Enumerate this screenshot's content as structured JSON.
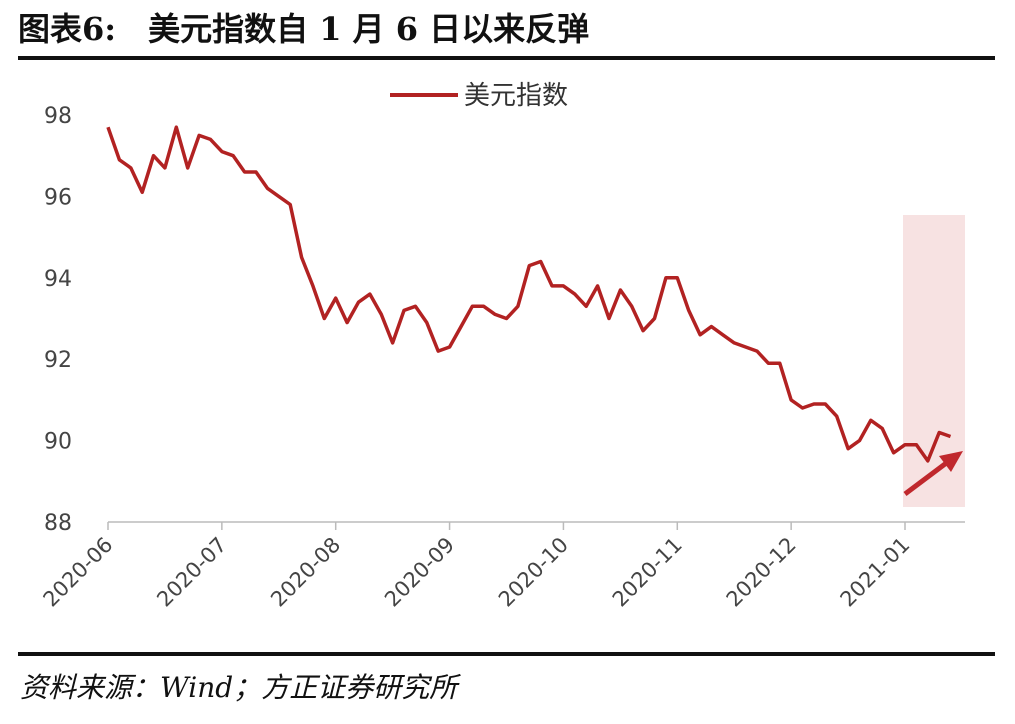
{
  "chart_data": {
    "type": "line",
    "title": "图表6:　美元指数自 1 月 6 日以来反弹",
    "source": "资料来源：Wind；方正证券研究所",
    "categories": [
      "2020-06",
      null,
      null,
      null,
      null,
      null,
      null,
      null,
      null,
      null,
      "2020-07",
      null,
      null,
      null,
      null,
      null,
      null,
      null,
      null,
      null,
      "2020-08",
      null,
      null,
      null,
      null,
      null,
      null,
      null,
      null,
      null,
      "2020-09",
      null,
      null,
      null,
      null,
      null,
      null,
      null,
      null,
      null,
      "2020-10",
      null,
      null,
      null,
      null,
      null,
      null,
      null,
      null,
      null,
      "2020-11",
      null,
      null,
      null,
      null,
      null,
      null,
      null,
      null,
      null,
      "2020-12",
      null,
      null,
      null,
      null,
      null,
      null,
      null,
      null,
      null,
      "2021-01",
      null,
      null,
      null,
      null
    ],
    "series": [
      {
        "name": "美元指数",
        "color": "#b22222",
        "values": [
          97.7,
          96.9,
          96.7,
          96.1,
          97.0,
          96.7,
          97.7,
          96.7,
          97.5,
          97.4,
          97.1,
          97.0,
          96.6,
          96.6,
          96.2,
          96.0,
          95.8,
          94.5,
          93.8,
          93.0,
          93.5,
          92.9,
          93.4,
          93.6,
          93.1,
          92.4,
          93.2,
          93.3,
          92.9,
          92.2,
          92.3,
          92.8,
          93.3,
          93.3,
          93.1,
          93.0,
          93.3,
          94.3,
          94.4,
          93.8,
          93.8,
          93.6,
          93.3,
          93.8,
          93.0,
          93.7,
          93.3,
          92.7,
          93.0,
          94.0,
          94.0,
          93.2,
          92.6,
          92.8,
          92.6,
          92.4,
          92.3,
          92.2,
          91.9,
          91.9,
          91.0,
          90.8,
          90.9,
          90.9,
          90.6,
          89.8,
          90.0,
          90.5,
          90.3,
          89.7,
          89.9,
          89.9,
          89.5,
          90.2,
          90.1
        ]
      }
    ],
    "ylim": [
      88,
      98
    ],
    "yticks": [
      88,
      90,
      92,
      94,
      96,
      98
    ]
  }
}
